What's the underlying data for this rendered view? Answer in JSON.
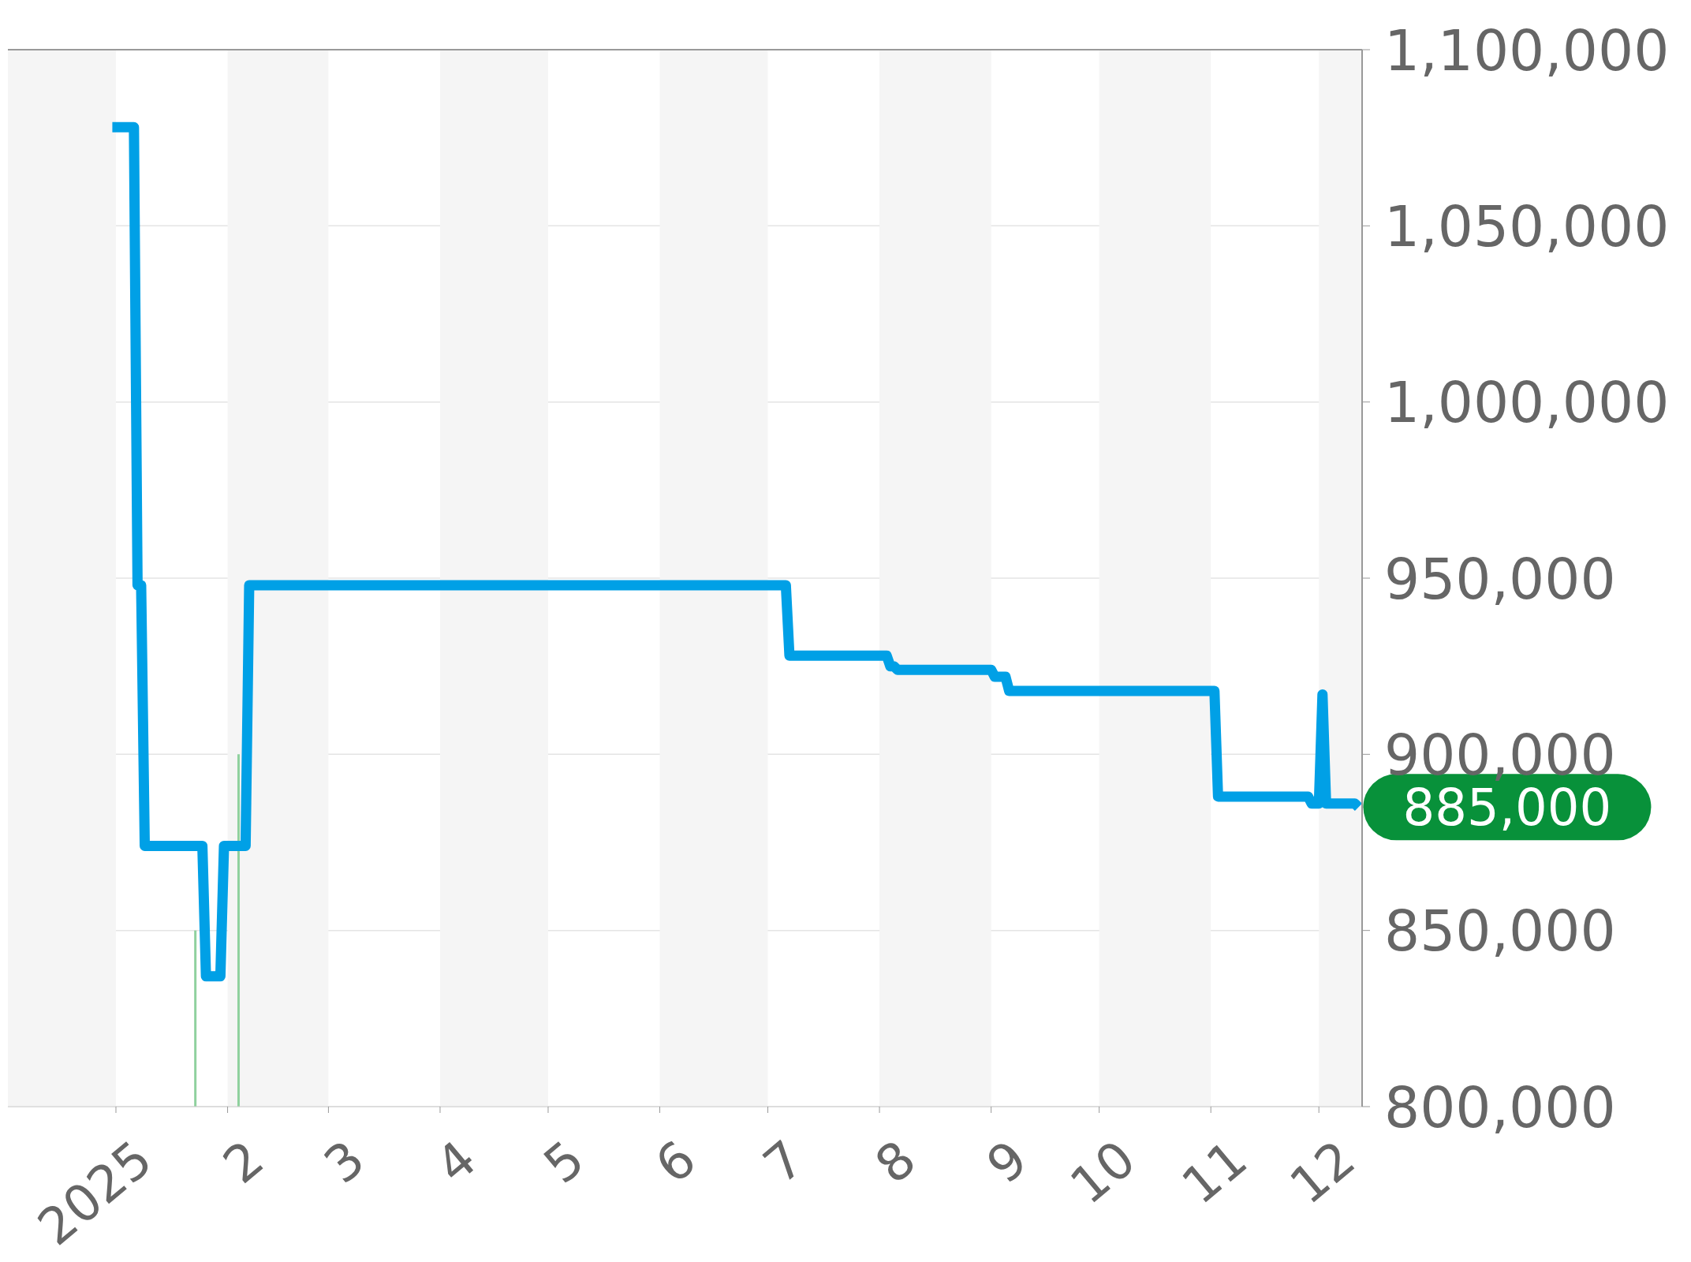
{
  "chart_data": {
    "type": "line",
    "series": [
      {
        "color": "#00a0e6",
        "x": [
          "2024-12-31",
          "2025-01-06",
          "2025-01-07",
          "2025-01-08",
          "2025-01-09",
          "2025-01-25",
          "2025-01-26",
          "2025-01-30",
          "2025-01-31",
          "2025-02-06",
          "2025-02-07",
          "2025-07-06",
          "2025-07-07",
          "2025-08-03",
          "2025-08-04",
          "2025-08-05",
          "2025-08-06",
          "2025-09-01",
          "2025-09-02",
          "2025-09-05",
          "2025-09-06",
          "2025-11-02",
          "2025-11-03",
          "2025-11-28",
          "2025-11-29",
          "2025-12-01",
          "2025-12-02",
          "2025-12-03",
          "2025-12-11",
          "2025-12-12"
        ],
        "values": [
          1078000,
          1078000,
          948000,
          948000,
          874000,
          874000,
          837000,
          837000,
          874000,
          874000,
          948000,
          948000,
          928000,
          928000,
          925000,
          925000,
          924000,
          924000,
          922000,
          922000,
          918000,
          918000,
          888000,
          888000,
          886000,
          886000,
          917000,
          886000,
          886000,
          885000
        ]
      },
      {
        "type": "bar",
        "color": "#8fd19e",
        "x": [
          "2025-01-23",
          "2025-02-04"
        ],
        "values": [
          850000,
          900000
        ]
      }
    ],
    "xlim": [
      "2024-12-02",
      "2025-12-13"
    ],
    "xticks": [
      {
        "value": "2025-01-01",
        "label": "2025"
      },
      {
        "value": "2025-02-01",
        "label": "2"
      },
      {
        "value": "2025-03-01",
        "label": "3"
      },
      {
        "value": "2025-04-01",
        "label": "4"
      },
      {
        "value": "2025-05-01",
        "label": "5"
      },
      {
        "value": "2025-06-01",
        "label": "6"
      },
      {
        "value": "2025-07-01",
        "label": "7"
      },
      {
        "value": "2025-08-01",
        "label": "8"
      },
      {
        "value": "2025-09-01",
        "label": "9"
      },
      {
        "value": "2025-10-01",
        "label": "10"
      },
      {
        "value": "2025-11-01",
        "label": "11"
      },
      {
        "value": "2025-12-01",
        "label": "12"
      }
    ],
    "ylim": [
      800000,
      1100000
    ],
    "yticks": [
      {
        "value": 800000,
        "label": "800,000"
      },
      {
        "value": 850000,
        "label": "850,000"
      },
      {
        "value": 900000,
        "label": "900,000"
      },
      {
        "value": 950000,
        "label": "950,000"
      },
      {
        "value": 1000000,
        "label": "1,000,000"
      },
      {
        "value": 1050000,
        "label": "1,050,000"
      },
      {
        "value": 1100000,
        "label": "1,100,000"
      }
    ],
    "grid": "y",
    "marker": "none",
    "bands": [
      {
        "axis": "x",
        "from": "2024-12-02",
        "to": "2025-01-01",
        "color": "#f5f5f5"
      },
      {
        "axis": "x",
        "from": "2025-02-01",
        "to": "2025-03-01",
        "color": "#f5f5f5"
      },
      {
        "axis": "x",
        "from": "2025-04-01",
        "to": "2025-05-01",
        "color": "#f5f5f5"
      },
      {
        "axis": "x",
        "from": "2025-06-01",
        "to": "2025-07-01",
        "color": "#f5f5f5"
      },
      {
        "axis": "x",
        "from": "2025-08-01",
        "to": "2025-09-01",
        "color": "#f5f5f5"
      },
      {
        "axis": "x",
        "from": "2025-10-01",
        "to": "2025-11-01",
        "color": "#f5f5f5"
      },
      {
        "axis": "x",
        "from": "2025-12-01",
        "to": "2025-12-13",
        "color": "#f5f5f5"
      }
    ],
    "annotations": [
      {
        "text": "885,000",
        "x": "2025-12-12",
        "y": 885000
      }
    ]
  }
}
